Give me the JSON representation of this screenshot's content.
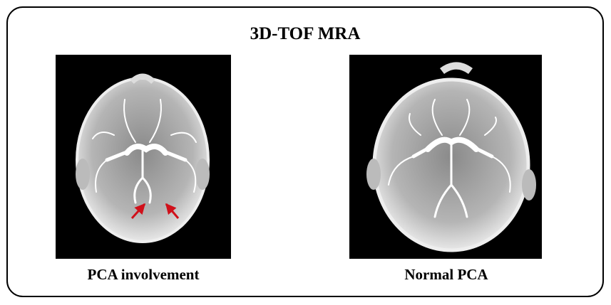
{
  "title": "3D-TOF MRA",
  "panels": [
    {
      "caption": "PCA involvement"
    },
    {
      "caption": "Normal PCA"
    }
  ]
}
